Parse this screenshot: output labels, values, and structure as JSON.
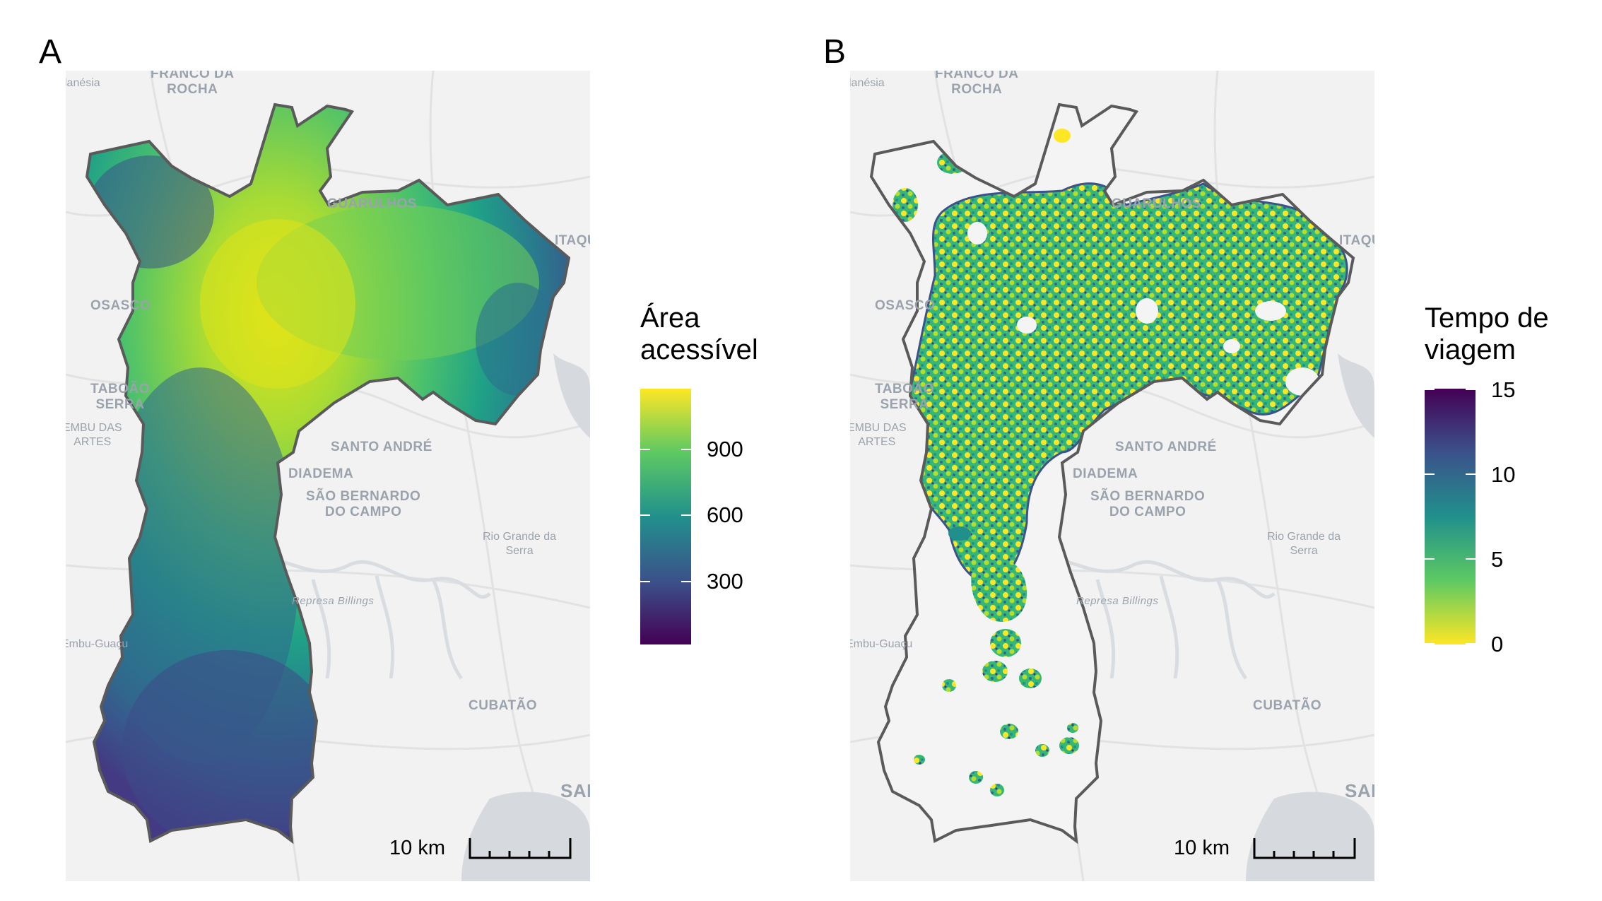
{
  "panels": [
    {
      "letter": "A",
      "legend": {
        "title": "Área\nacessível",
        "ticks": [
          "900",
          "600",
          "300"
        ],
        "tick_values": [
          900,
          600,
          300
        ],
        "range": [
          0,
          1150
        ],
        "colors_low_to_high": [
          "#440154",
          "#3b528b",
          "#21908c",
          "#5dc963",
          "#fde725"
        ]
      },
      "scale_label": "10 km"
    },
    {
      "letter": "B",
      "legend": {
        "title": "Tempo de\nviagem",
        "ticks": [
          "15",
          "10",
          "5",
          "0"
        ],
        "tick_values": [
          15,
          10,
          5,
          0
        ],
        "range": [
          0,
          15
        ],
        "colors_low_to_high": [
          "#fde725",
          "#5dc963",
          "#21908c",
          "#3b528b",
          "#440154"
        ]
      },
      "scale_label": "10 km"
    }
  ],
  "basemap": {
    "labels": [
      "FRANCO DA\nROCHA",
      "lanésia",
      "GUARULHOS",
      "ITAQUE",
      "OSASCO",
      "TABOÃO\nSERRA",
      "SANTO ANDRÉ",
      "DIADEMA",
      "SÃO BERNARDO\nDO CAMPO",
      "Rio Grande da\nSerra",
      "Represa Billings",
      "Embu-Guaçu",
      "CUBATÃO",
      "SAN",
      "EMBU DAS\nARTES"
    ]
  },
  "colors": {
    "boundary": "#5a5a5a",
    "basemap_bg": "#f2f2f2",
    "basemap_water": "#d6dade",
    "basemap_label": "#9aa3ad"
  }
}
